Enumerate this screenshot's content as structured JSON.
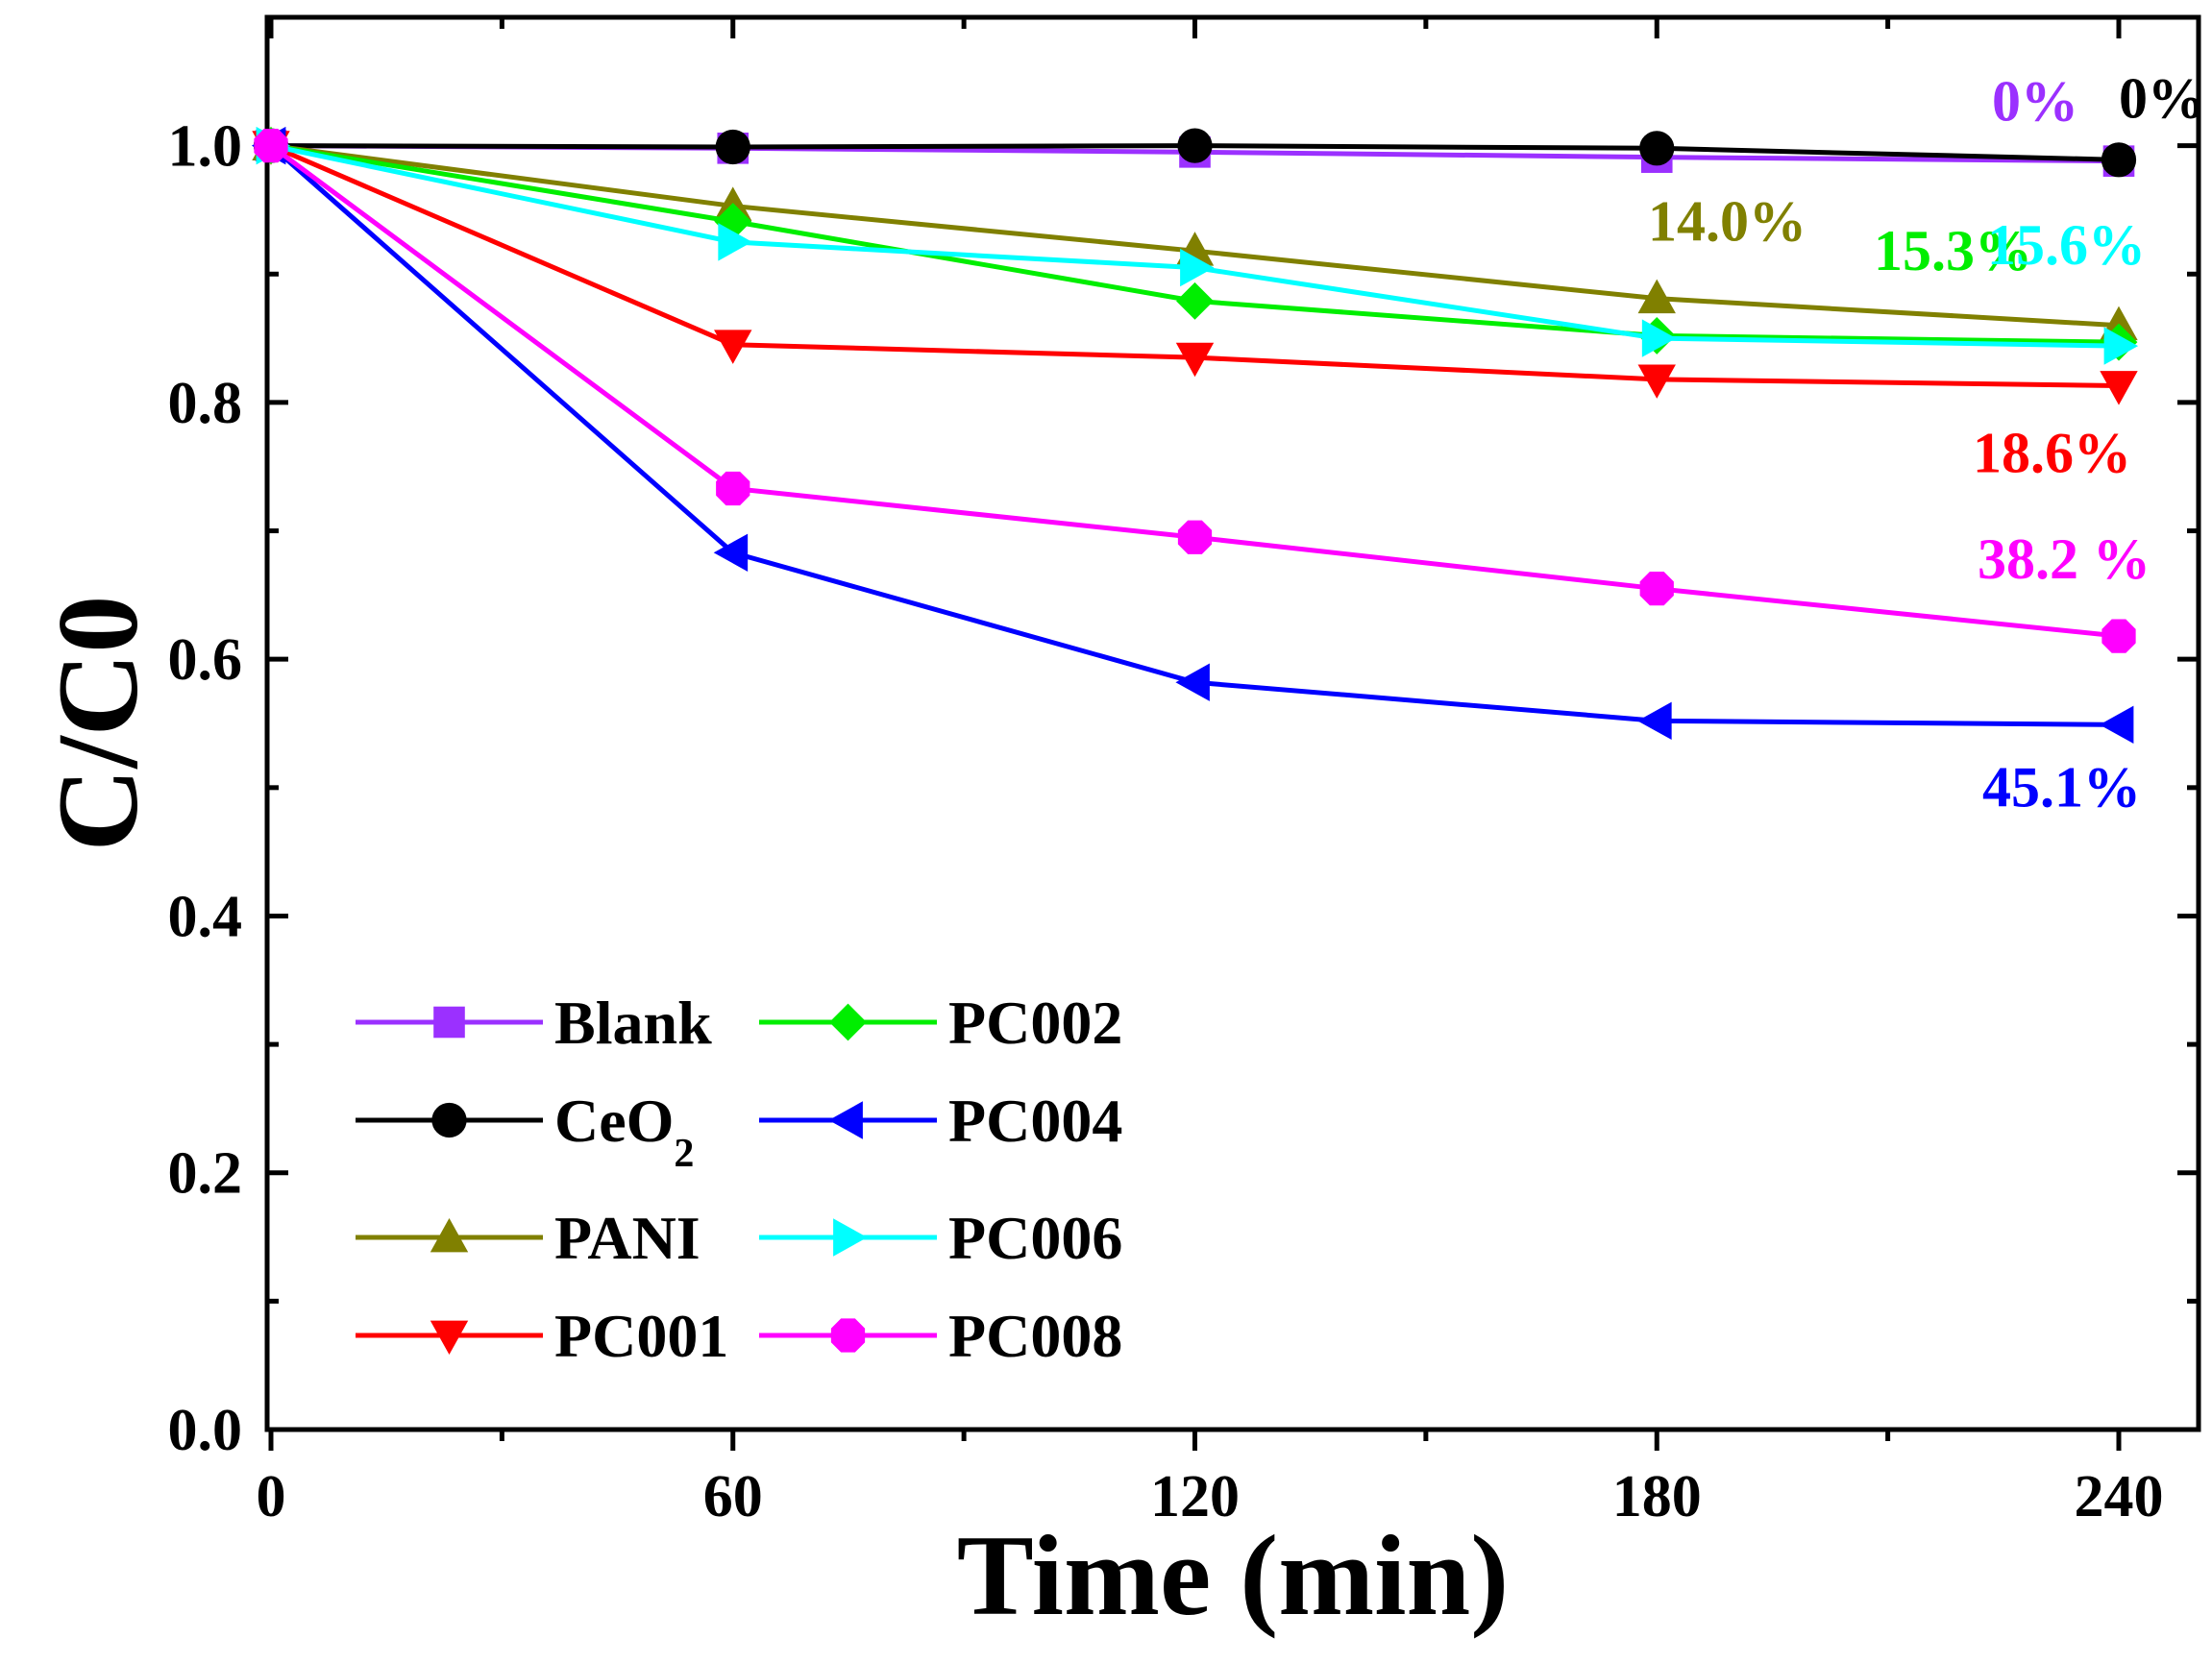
{
  "chart_data": {
    "type": "line",
    "title": "",
    "xlabel": "Time (min)",
    "ylabel": "C/C0",
    "xlim": [
      0,
      250
    ],
    "ylim": [
      0.0,
      1.1
    ],
    "x": [
      0,
      60,
      120,
      180,
      240
    ],
    "x_tick_labels": [
      "0",
      "60",
      "120",
      "180",
      "240"
    ],
    "y_tick_values": [
      0.0,
      0.2,
      0.4,
      0.6,
      0.8,
      1.0
    ],
    "y_tick_labels": [
      "0.0",
      "0.2",
      "0.4",
      "0.6",
      "0.8",
      "1.0"
    ],
    "legend_placement": "lower-left",
    "series": [
      {
        "name": "Blank",
        "label_main": "Blank",
        "label_sub": "",
        "color": "#9b30ff",
        "marker": "square",
        "values": [
          1.0,
          0.998,
          0.995,
          0.991,
          0.988
        ]
      },
      {
        "name": "CeO2",
        "label_main": "CeO",
        "label_sub": "2",
        "color": "#000000",
        "marker": "circle",
        "values": [
          1.0,
          0.999,
          1.0,
          0.998,
          0.989
        ]
      },
      {
        "name": "PANI",
        "label_main": "PANI",
        "label_sub": "",
        "color": "#808000",
        "marker": "triangle-up",
        "values": [
          1.0,
          0.953,
          0.918,
          0.881,
          0.86
        ]
      },
      {
        "name": "PC001",
        "label_main": "PC001",
        "label_sub": "",
        "color": "#ff0000",
        "marker": "triangle-down",
        "values": [
          1.0,
          0.845,
          0.835,
          0.818,
          0.813
        ]
      },
      {
        "name": "PC002",
        "label_main": "PC002",
        "label_sub": "",
        "color": "#00ee00",
        "marker": "diamond",
        "values": [
          1.0,
          0.941,
          0.879,
          0.852,
          0.847
        ]
      },
      {
        "name": "PC004",
        "label_main": "PC004",
        "label_sub": "",
        "color": "#0000ff",
        "marker": "triangle-left",
        "values": [
          1.0,
          0.683,
          0.582,
          0.552,
          0.549
        ]
      },
      {
        "name": "PC006",
        "label_main": "PC006",
        "label_sub": "",
        "color": "#00ffff",
        "marker": "triangle-right",
        "values": [
          1.0,
          0.925,
          0.905,
          0.85,
          0.844
        ]
      },
      {
        "name": "PC008",
        "label_main": "PC008",
        "label_sub": "",
        "color": "#ff00ff",
        "marker": "octagon",
        "values": [
          1.0,
          0.733,
          0.695,
          0.655,
          0.618
        ]
      }
    ],
    "annotations": [
      {
        "text": "0%",
        "series": "Blank",
        "color": "#9b30ff"
      },
      {
        "text": "0%",
        "series": "CeO2",
        "color": "#000000"
      },
      {
        "text": "14.0%",
        "series": "PANI",
        "color": "#808000"
      },
      {
        "text": "15.3%",
        "series": "PC002",
        "color": "#00ee00"
      },
      {
        "text": "15.6%",
        "series": "PC006",
        "color": "#00ffff"
      },
      {
        "text": "18.6%",
        "series": "PC001",
        "color": "#ff0000"
      },
      {
        "text": "38.2 %",
        "series": "PC008",
        "color": "#ff00ff"
      },
      {
        "text": "45.1%",
        "series": "PC004",
        "color": "#0000ff"
      }
    ]
  }
}
